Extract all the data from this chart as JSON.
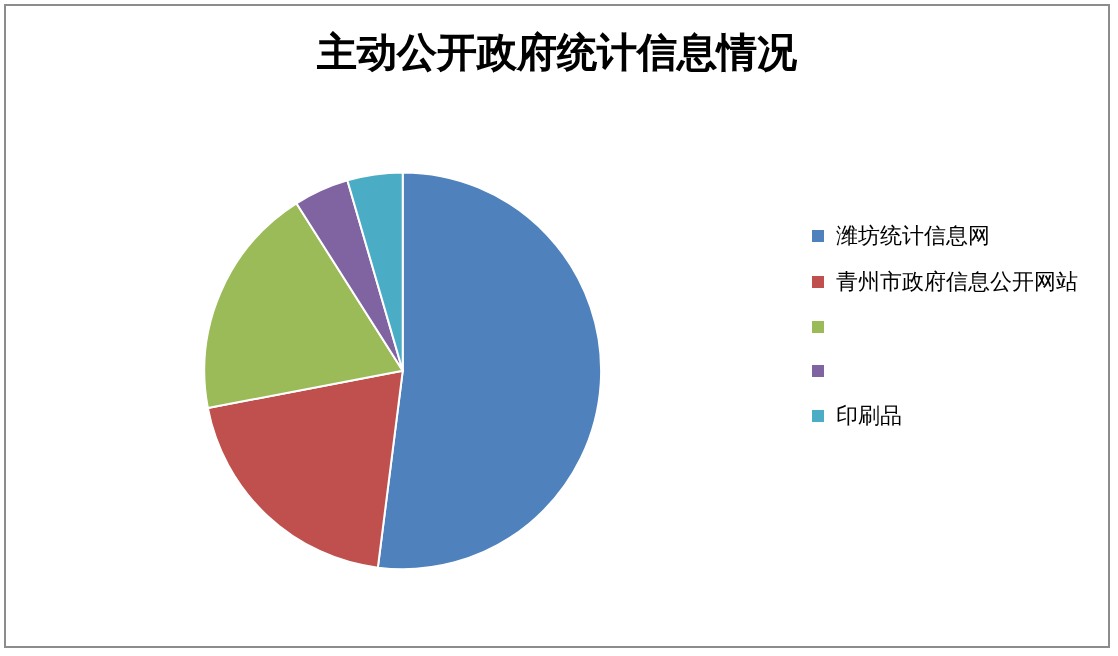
{
  "chart_data": {
    "type": "pie",
    "title": "主动公开政府统计信息情况",
    "categories": [
      "潍坊统计信息网",
      "青州市政府信息公开网站",
      null,
      null,
      "印刷品"
    ],
    "values": [
      52,
      20,
      19,
      4.5,
      4.5
    ],
    "colors": [
      "#4f81bd",
      "#c0504d",
      "#9bbb59",
      "#8064a2",
      "#4bacc6"
    ],
    "legend": "right"
  }
}
